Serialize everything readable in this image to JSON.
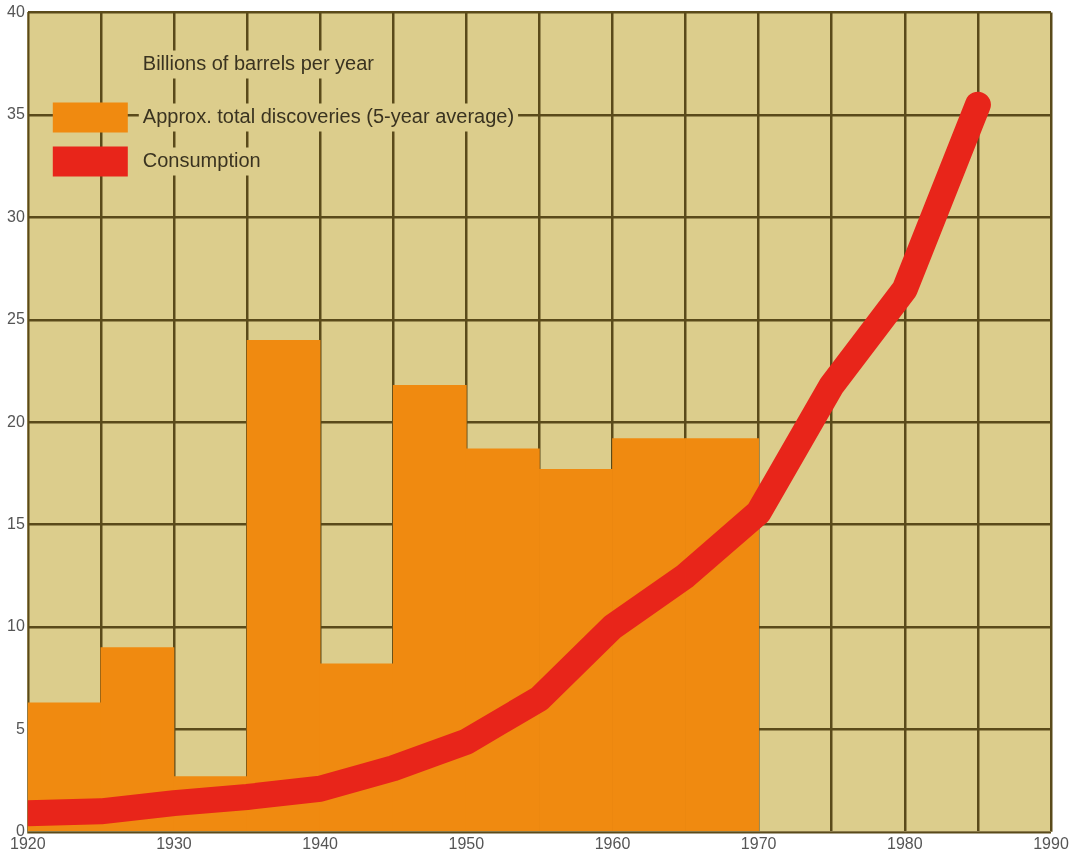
{
  "chart_data": {
    "type": "bar",
    "legend_title": "Billions of barrels per year",
    "series": [
      {
        "name": "Approx. total discoveries (5-year average)",
        "color": "#f08a10",
        "x": [
          1922.5,
          1927.5,
          1932.5,
          1937.5,
          1942.5,
          1947.5,
          1952.5,
          1957.5,
          1962.5,
          1967.5
        ],
        "values": [
          6.3,
          9.0,
          2.7,
          24.0,
          8.2,
          21.8,
          18.7,
          17.7,
          19.2,
          19.2
        ]
      },
      {
        "name": "Consumption",
        "type": "line",
        "color": "#e8251a",
        "x": [
          1920,
          1925,
          1930,
          1935,
          1940,
          1945,
          1950,
          1955,
          1960,
          1965,
          1970,
          1975,
          1980,
          1985
        ],
        "values": [
          0.9,
          1.0,
          1.4,
          1.7,
          2.1,
          3.1,
          4.4,
          6.5,
          10.0,
          12.5,
          15.6,
          21.8,
          26.5,
          35.5
        ]
      }
    ],
    "xlim": [
      1920,
      1990
    ],
    "xticks": [
      1920,
      {
        "value": 1925,
        "label": null
      },
      1930,
      {
        "value": 1935,
        "label": null
      },
      1940,
      {
        "value": 1945,
        "label": null
      },
      1950,
      {
        "value": 1955,
        "label": null
      },
      1960,
      {
        "value": 1965,
        "label": null
      },
      1970,
      {
        "value": 1975,
        "label": null
      },
      1980,
      {
        "value": 1985,
        "label": null
      },
      1990
    ],
    "ylim": [
      0,
      40
    ],
    "yticks": [
      0,
      5,
      10,
      15,
      20,
      25,
      30,
      35,
      40
    ],
    "grid": true,
    "legend": "top left",
    "marker": "none",
    "line_style": "solid"
  }
}
